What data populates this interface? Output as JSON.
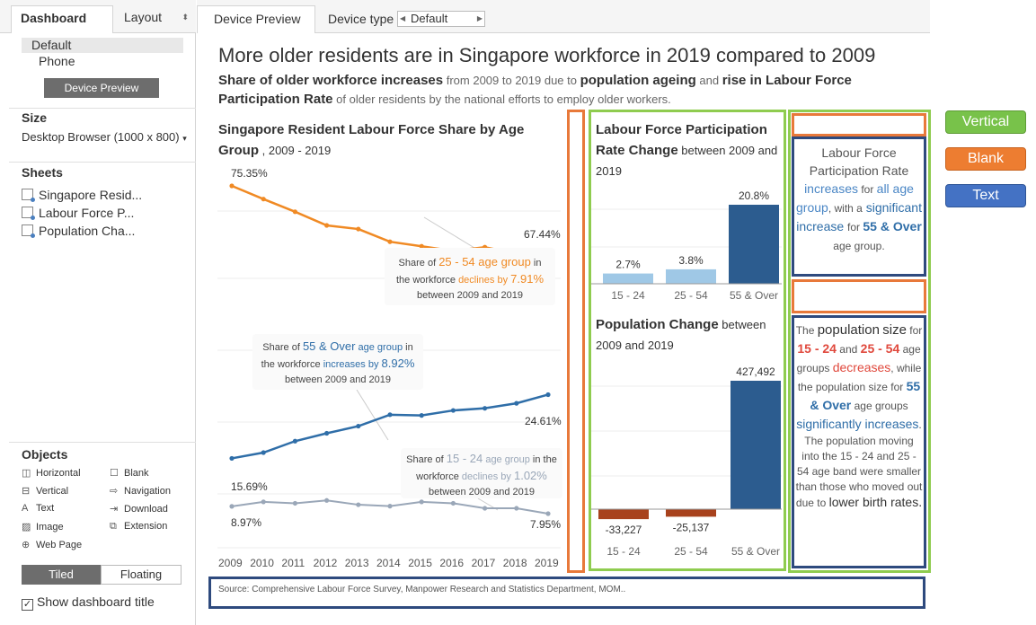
{
  "left_panel": {
    "tabs": {
      "dashboard": "Dashboard",
      "layout": "Layout"
    },
    "device": {
      "default": "Default",
      "phone": "Phone",
      "preview_button": "Device Preview"
    },
    "size": {
      "title": "Size",
      "value": "Desktop Browser (1000 x 800)"
    },
    "sheets": {
      "title": "Sheets",
      "items": [
        "Singapore Resid...",
        "Labour Force P...",
        "Population Cha..."
      ]
    },
    "objects": {
      "title": "Objects",
      "items": [
        {
          "label": "Horizontal",
          "icon": "horizontal-icon"
        },
        {
          "label": "Blank",
          "icon": "blank-icon"
        },
        {
          "label": "Vertical",
          "icon": "vertical-icon"
        },
        {
          "label": "Navigation",
          "icon": "navigation-icon"
        },
        {
          "label": "Text",
          "icon": "text-icon"
        },
        {
          "label": "Download",
          "icon": "download-icon"
        },
        {
          "label": "Image",
          "icon": "image-icon"
        },
        {
          "label": "Extension",
          "icon": "extension-icon"
        },
        {
          "label": "Web Page",
          "icon": "globe-icon"
        }
      ]
    },
    "tiled_label": "Tiled",
    "floating_label": "Floating",
    "show_title_label": "Show dashboard title"
  },
  "topbar": {
    "device_preview": "Device Preview",
    "device_type_label": "Device type",
    "device_type_value": "Default"
  },
  "dashboard": {
    "title": "More older residents are in Singapore workforce in 2019 compared to 2009",
    "subtitle_parts": {
      "a": "Share of older workforce increases",
      "b": " from 2009 to 2019 due to ",
      "c": "population ageing",
      "d": " and ",
      "e": "rise in Labour Force Participation Rate",
      "f": " of older residents by the national efforts to employ older workers."
    },
    "source": "Source: Comprehensive Labour Force Survey, Manpower Research and Statistics Department, MOM..",
    "left_chart": {
      "title_bold": "Singapore Resident Labour Force Share by Age Group",
      "title_tail": " , 2009 - 2019",
      "labels": {
        "s1_start": "75.35%",
        "s1_end": "67.44%",
        "s2_start": "15.69%",
        "s2_end": "24.61%",
        "s3_start": "8.97%",
        "s3_end": "7.95%"
      },
      "ann1": {
        "l1a": "Share of ",
        "l1b": "25 - 54 age group",
        "l1c": " in",
        "l2a": "the workforce ",
        "l2b": "declines by ",
        "l2c": "7.91%",
        "l3": "between 2009 and 2019"
      },
      "ann2": {
        "l1a": "Share of ",
        "l1b": "55 & Over",
        "l1c": " age group",
        "l1d": " in",
        "l2a": "the workforce ",
        "l2b": "increases by ",
        "l2c": "8.92%",
        "l3": "between 2009 and 2019"
      },
      "ann3": {
        "l1a": "Share of ",
        "l1b": "15 - 24",
        "l1c": " age group",
        "l1d": " in the",
        "l2a": "workforce ",
        "l2b": "declines by ",
        "l2c": "1.02%",
        "l3": "between 2009 and 2019"
      }
    },
    "lfpr_chart": {
      "title_bold": "Labour Force Participation Rate Change",
      "title_tail": " between 2009 and 2019",
      "categories": [
        "15 - 24",
        "25 - 54",
        "55 & Over"
      ],
      "value_labels": [
        "2.7%",
        "3.8%",
        "20.8%"
      ]
    },
    "pop_chart": {
      "title_bold": "Population Change",
      "title_tail": " between 2009 and 2019",
      "categories": [
        "15 - 24",
        "25 - 54",
        "55 & Over"
      ],
      "value_labels": [
        "-33,227",
        "-25,137",
        "427,492"
      ]
    },
    "text1": {
      "a": "Labour Force Participation Rate",
      "b": "increases",
      "c": " for ",
      "d": "all age group",
      "e": ", with a",
      "f": "significant increase",
      "g": "for ",
      "h": "55 & Over",
      "i": " age group."
    },
    "text2": {
      "a": "The ",
      "b": "population",
      "c": "size",
      "d": " for ",
      "e": "15 - 24",
      "f": " and ",
      "g": "25 - 54",
      "h": " age groups ",
      "i": "decreases",
      "j": ", while the population size for ",
      "k": "55 & Over",
      "l": " age groups ",
      "m": "significantly increases",
      "n": ".",
      "o": "The population moving into the 15 - 24 and 25 - 54 age band were smaller than those who moved out due to ",
      "p": "lower birth rates."
    }
  },
  "legend": {
    "vertical": "Vertical",
    "blank": "Blank",
    "text": "Text"
  },
  "colors": {
    "orange": "#f08a24",
    "blue": "#2f6ea8",
    "gray": "#9aa7b8",
    "light_blue": "#9fc8e6",
    "dark_blue": "#2c5c8f",
    "rust": "#a8421d",
    "green_frame": "#8fcc4f",
    "orange_frame": "#e8793a",
    "navy_frame": "#2e4a7e"
  },
  "chart_data": [
    {
      "type": "line",
      "title": "Singapore Resident Labour Force Share by Age Group, 2009 - 2019",
      "x": [
        2009,
        2010,
        2011,
        2012,
        2013,
        2014,
        2015,
        2016,
        2017,
        2018,
        2019
      ],
      "series": [
        {
          "name": "25 - 54",
          "values": [
            75.35,
            73.9,
            72.5,
            71.0,
            70.6,
            69.2,
            68.7,
            68.2,
            68.6,
            67.9,
            67.44
          ]
        },
        {
          "name": "55 & Over",
          "values": [
            15.69,
            16.5,
            18.1,
            19.2,
            20.2,
            21.8,
            21.7,
            22.4,
            22.7,
            23.4,
            24.61
          ]
        },
        {
          "name": "15 - 24",
          "values": [
            8.97,
            9.6,
            9.4,
            9.8,
            9.2,
            9.0,
            9.6,
            9.4,
            8.7,
            8.7,
            7.95
          ]
        }
      ],
      "ylim": [
        0,
        80
      ]
    },
    {
      "type": "bar",
      "title": "Labour Force Participation Rate Change between 2009 and 2019",
      "categories": [
        "15 - 24",
        "25 - 54",
        "55 & Over"
      ],
      "values": [
        2.7,
        3.8,
        20.8
      ]
    },
    {
      "type": "bar",
      "title": "Population Change between 2009 and 2019",
      "categories": [
        "15 - 24",
        "25 - 54",
        "55 & Over"
      ],
      "values": [
        -33227,
        -25137,
        427492
      ]
    }
  ]
}
